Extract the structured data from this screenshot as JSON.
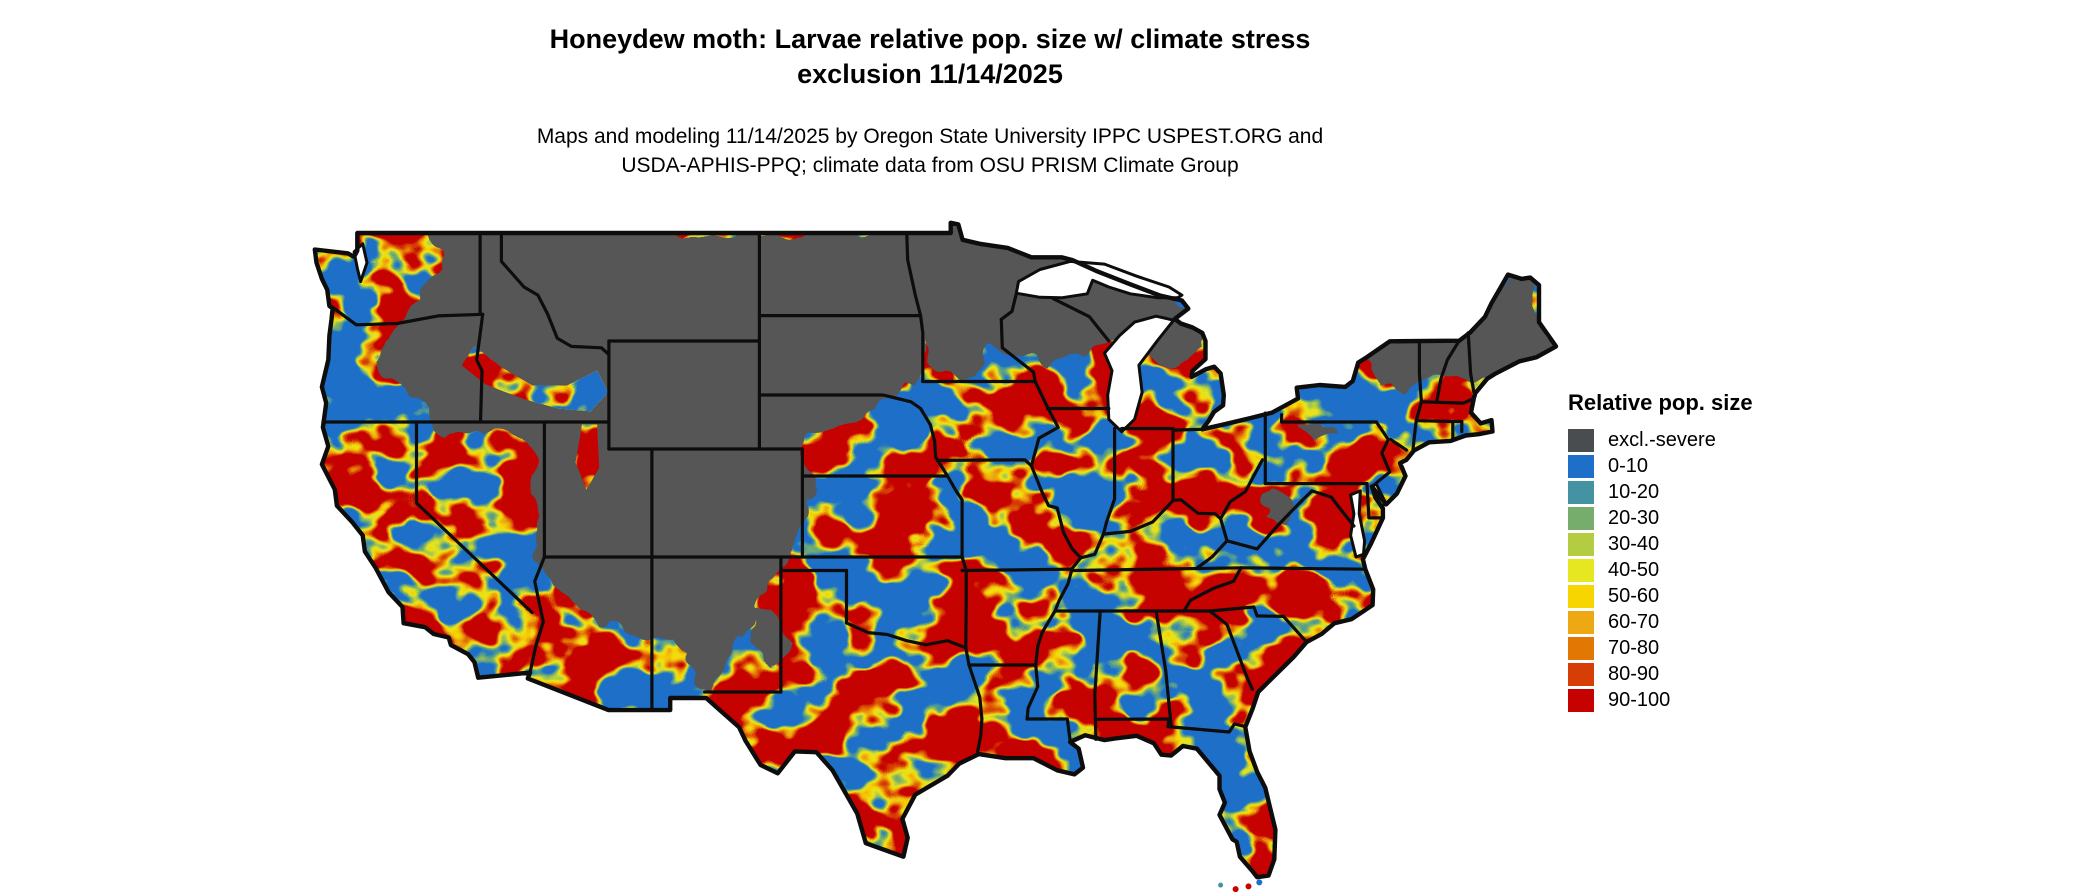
{
  "title": {
    "line1": "Honeydew moth: Larvae relative pop. size w/ climate stress",
    "line2": "exclusion 11/14/2025"
  },
  "subtitle": {
    "line1": "Maps and modeling 11/14/2025 by Oregon State University IPPC USPEST.ORG and",
    "line2": "USDA-APHIS-PPQ; climate data from OSU PRISM Climate Group"
  },
  "legend": {
    "title": "Relative pop. size",
    "items": [
      {
        "label": "excl.-severe",
        "color": "#4a4d4f"
      },
      {
        "label": "0-10",
        "color": "#1d6fc8"
      },
      {
        "label": "10-20",
        "color": "#4493a2"
      },
      {
        "label": "20-30",
        "color": "#77ad6c"
      },
      {
        "label": "30-40",
        "color": "#b4cc41"
      },
      {
        "label": "40-50",
        "color": "#e6e621"
      },
      {
        "label": "50-60",
        "color": "#f6d500"
      },
      {
        "label": "60-70",
        "color": "#eda813"
      },
      {
        "label": "70-80",
        "color": "#e37704"
      },
      {
        "label": "80-90",
        "color": "#d63e05"
      },
      {
        "label": "90-100",
        "color": "#c50200"
      }
    ]
  },
  "map": {
    "region": "Contiguous United States",
    "colors": {
      "background": "#ffffff",
      "water": "#ffffff",
      "excluded_fill": "#565656",
      "border": "#0d0d0d"
    }
  }
}
